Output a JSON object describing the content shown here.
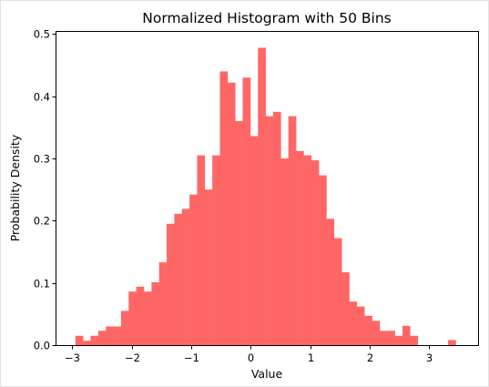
{
  "chart_data": {
    "type": "bar",
    "title": "Normalized Histogram with 50 Bins",
    "xlabel": "Value",
    "ylabel": "Probability Density",
    "xlim": [
      -3.28,
      3.82
    ],
    "ylim": [
      0,
      0.505
    ],
    "xticks": [
      {
        "value": -3,
        "label": "−3"
      },
      {
        "value": -2,
        "label": "−2"
      },
      {
        "value": -1,
        "label": "−1"
      },
      {
        "value": 0,
        "label": "0"
      },
      {
        "value": 1,
        "label": "1"
      },
      {
        "value": 2,
        "label": "2"
      },
      {
        "value": 3,
        "label": "3"
      }
    ],
    "yticks": [
      {
        "value": 0,
        "label": "0.0"
      },
      {
        "value": 0.1,
        "label": "0.1"
      },
      {
        "value": 0.2,
        "label": "0.2"
      },
      {
        "value": 0.3,
        "label": "0.3"
      },
      {
        "value": 0.4,
        "label": "0.4"
      },
      {
        "value": 0.5,
        "label": "0.5"
      }
    ],
    "bin_start": -2.946,
    "bin_width": 0.1278,
    "values": [
      0.015,
      0.007,
      0.015,
      0.023,
      0.03,
      0.03,
      0.055,
      0.086,
      0.094,
      0.086,
      0.101,
      0.133,
      0.195,
      0.211,
      0.219,
      0.242,
      0.305,
      0.25,
      0.305,
      0.44,
      0.422,
      0.36,
      0.43,
      0.336,
      0.478,
      0.368,
      0.375,
      0.3,
      0.368,
      0.312,
      0.305,
      0.297,
      0.273,
      0.203,
      0.172,
      0.117,
      0.07,
      0.062,
      0.047,
      0.039,
      0.023,
      0.023,
      0.015,
      0.031,
      0.015,
      0.0,
      0.0,
      0.0,
      0.0,
      0.008
    ],
    "color": "#ff6666",
    "grid": false
  }
}
